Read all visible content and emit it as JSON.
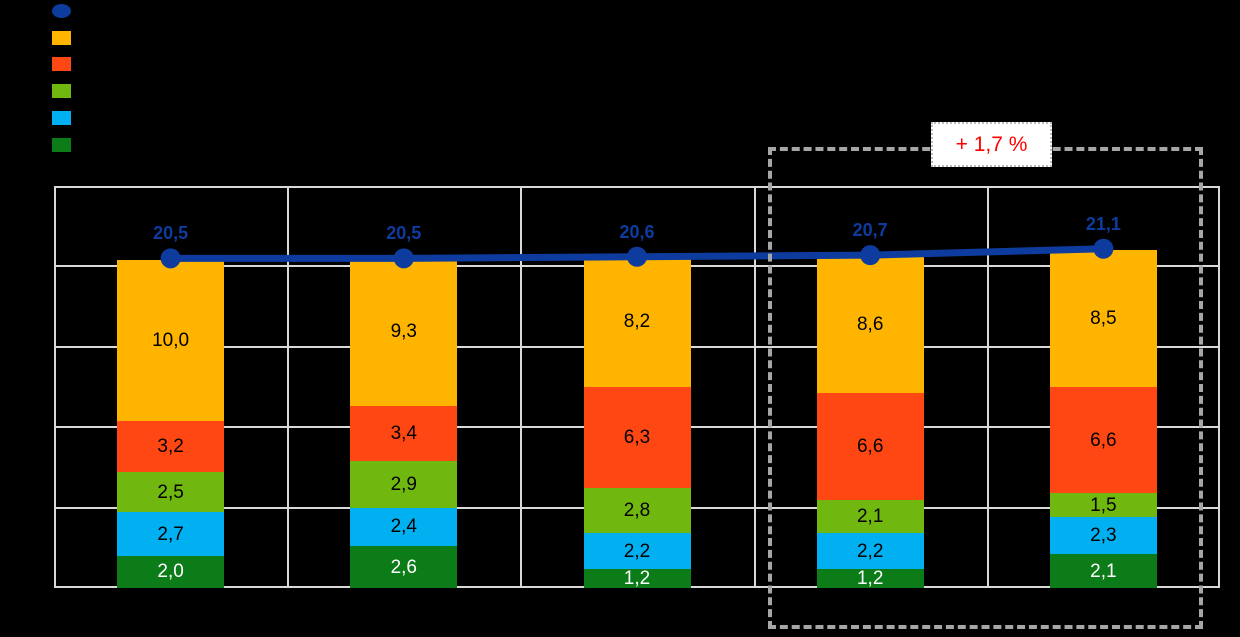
{
  "canvas": {
    "background": "#000000"
  },
  "legend": {
    "items": [
      {
        "name": "total-line",
        "marker": "circle",
        "color": "#0D3C9E"
      },
      {
        "name": "segment-yellow",
        "marker": "square",
        "color": "#FFB400"
      },
      {
        "name": "segment-orange",
        "marker": "square",
        "color": "#FF4713"
      },
      {
        "name": "segment-green",
        "marker": "square",
        "color": "#70B80F"
      },
      {
        "name": "segment-lightblue",
        "marker": "square",
        "color": "#00B0F0"
      },
      {
        "name": "segment-darkgreen",
        "marker": "square",
        "color": "#0B7C18"
      }
    ]
  },
  "annotation": {
    "text": "+ 1,7 %",
    "color": "#FF0000"
  },
  "chart_data": {
    "type": "bar",
    "subtype": "stacked-bar-with-total-line",
    "categories": [
      "",
      "",
      "",
      "",
      ""
    ],
    "series": [
      {
        "name": "yellow-segment",
        "color": "#FFB400",
        "label_color": "#000000",
        "values": [
          10.0,
          9.3,
          8.2,
          8.6,
          8.5
        ],
        "labels": [
          "10,0",
          "9,3",
          "8,2",
          "8,6",
          "8,5"
        ]
      },
      {
        "name": "orange-segment",
        "color": "#FF4713",
        "label_color": "#000000",
        "values": [
          3.2,
          3.4,
          6.3,
          6.6,
          6.6
        ],
        "labels": [
          "3,2",
          "3,4",
          "6,3",
          "6,6",
          "6,6"
        ]
      },
      {
        "name": "green-segment",
        "color": "#70B80F",
        "label_color": "#000000",
        "values": [
          2.5,
          2.9,
          2.8,
          2.1,
          1.5
        ],
        "labels": [
          "2,5",
          "2,9",
          "2,8",
          "2,1",
          "1,5"
        ]
      },
      {
        "name": "lightblue-segment",
        "color": "#00B0F0",
        "label_color": "#000000",
        "values": [
          2.7,
          2.4,
          2.2,
          2.2,
          2.3
        ],
        "labels": [
          "2,7",
          "2,4",
          "2,2",
          "2,2",
          "2,3"
        ]
      },
      {
        "name": "darkgreen-segment",
        "color": "#0B7C18",
        "label_color": "#FFFFFF",
        "values": [
          2.0,
          2.6,
          1.2,
          1.2,
          2.1
        ],
        "labels": [
          "2,0",
          "2,6",
          "1,2",
          "1,2",
          "2,1"
        ]
      }
    ],
    "line_series": {
      "name": "total-line",
      "color": "#0D3C9E",
      "marker": "circle",
      "values": [
        20.5,
        20.5,
        20.6,
        20.7,
        21.1
      ],
      "labels": [
        "20,5",
        "20,5",
        "20,6",
        "20,7",
        "21,1"
      ]
    },
    "ylim": [
      0,
      25
    ],
    "gridline_step": 5,
    "grid": true,
    "gridline_color": "#D9D9D9",
    "highlight_region": {
      "category_indexes": [
        3,
        4
      ],
      "label": "+ 1,7 %"
    },
    "title": "",
    "xlabel": "",
    "ylabel": "",
    "legend_position": "top-left"
  }
}
